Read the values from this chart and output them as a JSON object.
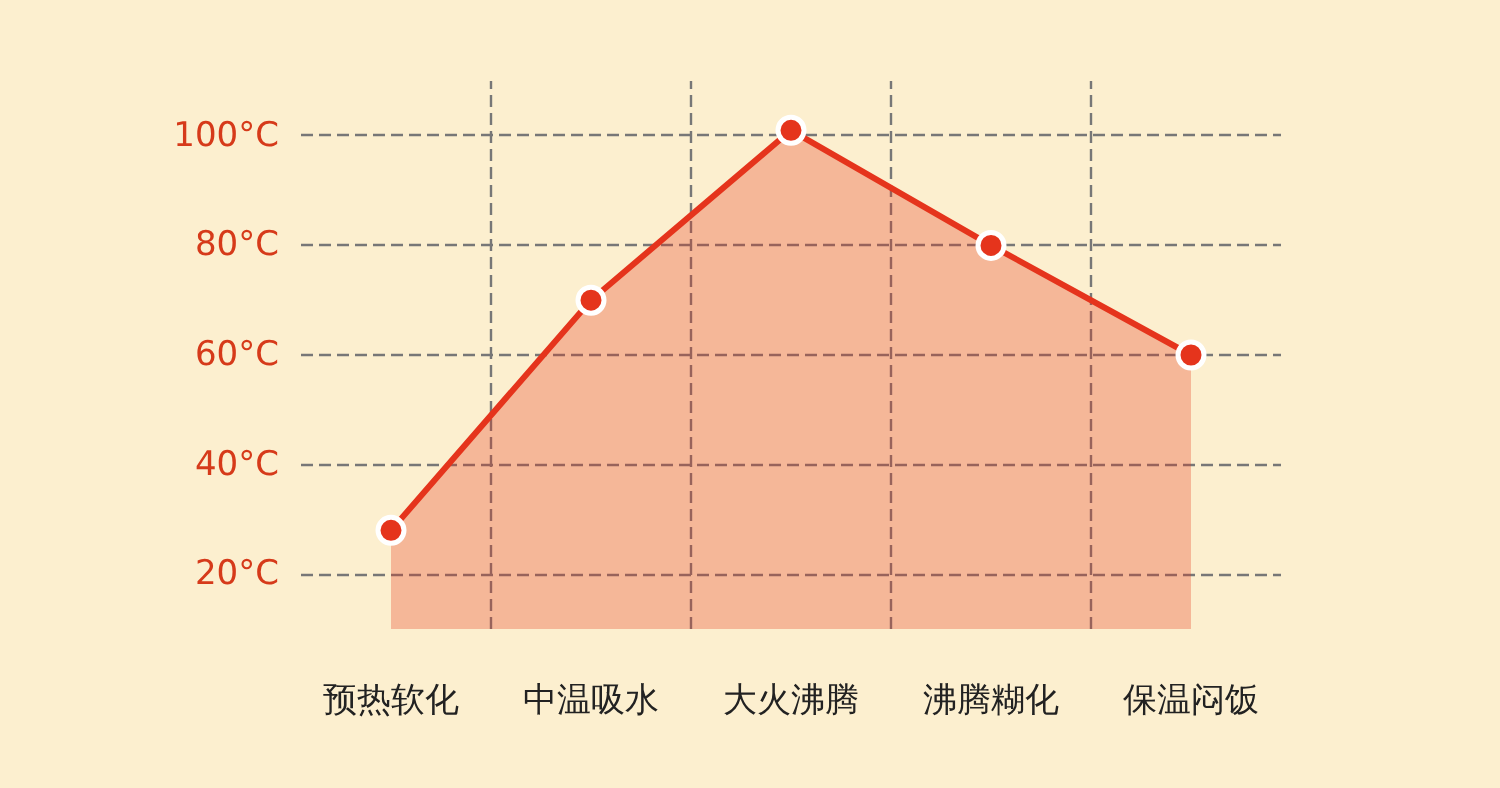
{
  "chart_data": {
    "type": "area",
    "categories": [
      "预热软化",
      "中温吸水",
      "大火沸腾",
      "沸腾糊化",
      "保温闷饭"
    ],
    "series": [
      {
        "color": "#e5341c",
        "values": [
          28,
          70,
          101,
          80,
          60
        ]
      }
    ],
    "ylim": [
      10,
      110
    ],
    "yticks": [
      {
        "value": 20,
        "label": "20°C"
      },
      {
        "value": 40,
        "label": "40°C"
      },
      {
        "value": 60,
        "label": "60°C"
      },
      {
        "value": 80,
        "label": "80°C"
      },
      {
        "value": 100,
        "label": "100°C"
      }
    ],
    "grid": true,
    "marker": "circle",
    "line_style": "solid"
  }
}
